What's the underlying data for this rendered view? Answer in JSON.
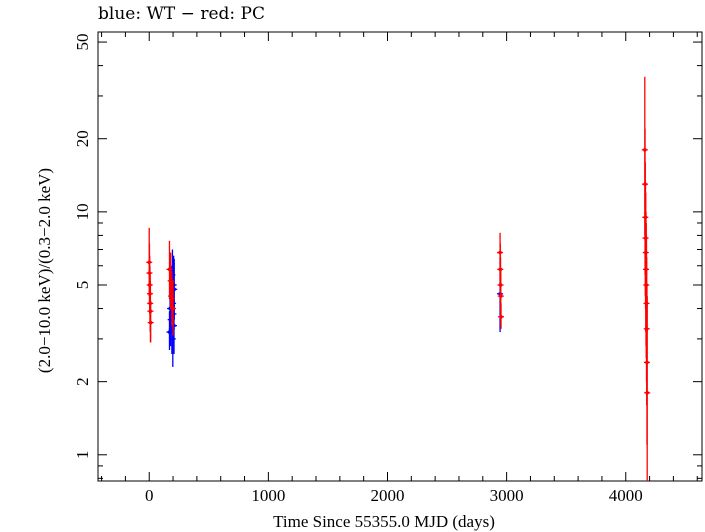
{
  "chart_data": {
    "type": "scatter",
    "title": "blue: WT − red: PC",
    "xlabel": "Time Since 55355.0 MJD (days)",
    "ylabel": "(2.0−10.0 keV)/(0.3−2.0 keV)",
    "xlim": [
      -430,
      4640
    ],
    "ylim": [
      0.78,
      55
    ],
    "yscale": "log",
    "xticks": [
      0,
      1000,
      2000,
      3000,
      4000
    ],
    "yticks": [
      1,
      2,
      5,
      10,
      20,
      50
    ],
    "grid": false,
    "series": [
      {
        "name": "WT",
        "color": "#0000ff",
        "points": [
          {
            "x": 170,
            "y": 3.2,
            "lo": 2.7,
            "hi": 3.9
          },
          {
            "x": 175,
            "y": 4.0,
            "lo": 3.2,
            "hi": 5.2
          },
          {
            "x": 180,
            "y": 3.6,
            "lo": 2.8,
            "hi": 4.8
          },
          {
            "x": 185,
            "y": 4.5,
            "lo": 3.5,
            "hi": 6.0
          },
          {
            "x": 190,
            "y": 3.3,
            "lo": 2.6,
            "hi": 4.3
          },
          {
            "x": 195,
            "y": 5.5,
            "lo": 4.3,
            "hi": 7.0
          },
          {
            "x": 198,
            "y": 3.0,
            "lo": 2.3,
            "hi": 4.0
          },
          {
            "x": 200,
            "y": 4.2,
            "lo": 3.3,
            "hi": 5.5
          },
          {
            "x": 203,
            "y": 3.8,
            "lo": 2.9,
            "hi": 5.0
          },
          {
            "x": 205,
            "y": 5.0,
            "lo": 3.8,
            "hi": 6.6
          },
          {
            "x": 208,
            "y": 3.4,
            "lo": 2.6,
            "hi": 4.5
          },
          {
            "x": 210,
            "y": 4.8,
            "lo": 3.6,
            "hi": 6.4
          },
          {
            "x": 2945,
            "y": 4.6,
            "lo": 3.2,
            "hi": 6.5
          }
        ]
      },
      {
        "name": "PC",
        "color": "#ff0000",
        "points": [
          {
            "x": 0,
            "y": 6.2,
            "lo": 4.5,
            "hi": 8.6
          },
          {
            "x": 2,
            "y": 5.6,
            "lo": 4.2,
            "hi": 7.4
          },
          {
            "x": 4,
            "y": 5.0,
            "lo": 3.8,
            "hi": 6.6
          },
          {
            "x": 6,
            "y": 4.6,
            "lo": 3.5,
            "hi": 6.0
          },
          {
            "x": 8,
            "y": 4.2,
            "lo": 3.2,
            "hi": 5.5
          },
          {
            "x": 10,
            "y": 3.9,
            "lo": 2.9,
            "hi": 5.2
          },
          {
            "x": 12,
            "y": 3.5,
            "lo": 2.9,
            "hi": 4.3
          },
          {
            "x": 170,
            "y": 5.8,
            "lo": 4.4,
            "hi": 7.6
          },
          {
            "x": 180,
            "y": 5.2,
            "lo": 4.0,
            "hi": 6.8
          },
          {
            "x": 190,
            "y": 4.4,
            "lo": 3.4,
            "hi": 5.7
          },
          {
            "x": 200,
            "y": 4.0,
            "lo": 3.1,
            "hi": 5.2
          },
          {
            "x": 2945,
            "y": 6.8,
            "lo": 5.0,
            "hi": 8.2
          },
          {
            "x": 2947,
            "y": 5.8,
            "lo": 4.3,
            "hi": 7.4
          },
          {
            "x": 2949,
            "y": 5.0,
            "lo": 3.8,
            "hi": 6.5
          },
          {
            "x": 2951,
            "y": 4.5,
            "lo": 3.4,
            "hi": 5.8
          },
          {
            "x": 2953,
            "y": 3.7,
            "lo": 3.3,
            "hi": 4.2
          },
          {
            "x": 4160,
            "y": 18.0,
            "lo": 8.0,
            "hi": 36.0
          },
          {
            "x": 4162,
            "y": 13.0,
            "lo": 5.5,
            "hi": 22.0
          },
          {
            "x": 4164,
            "y": 9.5,
            "lo": 4.5,
            "hi": 16.0
          },
          {
            "x": 4166,
            "y": 7.8,
            "lo": 4.0,
            "hi": 13.0
          },
          {
            "x": 4168,
            "y": 6.8,
            "lo": 3.2,
            "hi": 12.0
          },
          {
            "x": 4170,
            "y": 5.8,
            "lo": 2.8,
            "hi": 10.0
          },
          {
            "x": 4172,
            "y": 5.0,
            "lo": 2.5,
            "hi": 9.0
          },
          {
            "x": 4174,
            "y": 4.2,
            "lo": 2.0,
            "hi": 8.0
          },
          {
            "x": 4176,
            "y": 3.3,
            "lo": 1.6,
            "hi": 6.5
          },
          {
            "x": 4178,
            "y": 2.4,
            "lo": 1.1,
            "hi": 5.0
          },
          {
            "x": 4180,
            "y": 1.8,
            "lo": 0.78,
            "hi": 4.5
          }
        ]
      }
    ]
  }
}
